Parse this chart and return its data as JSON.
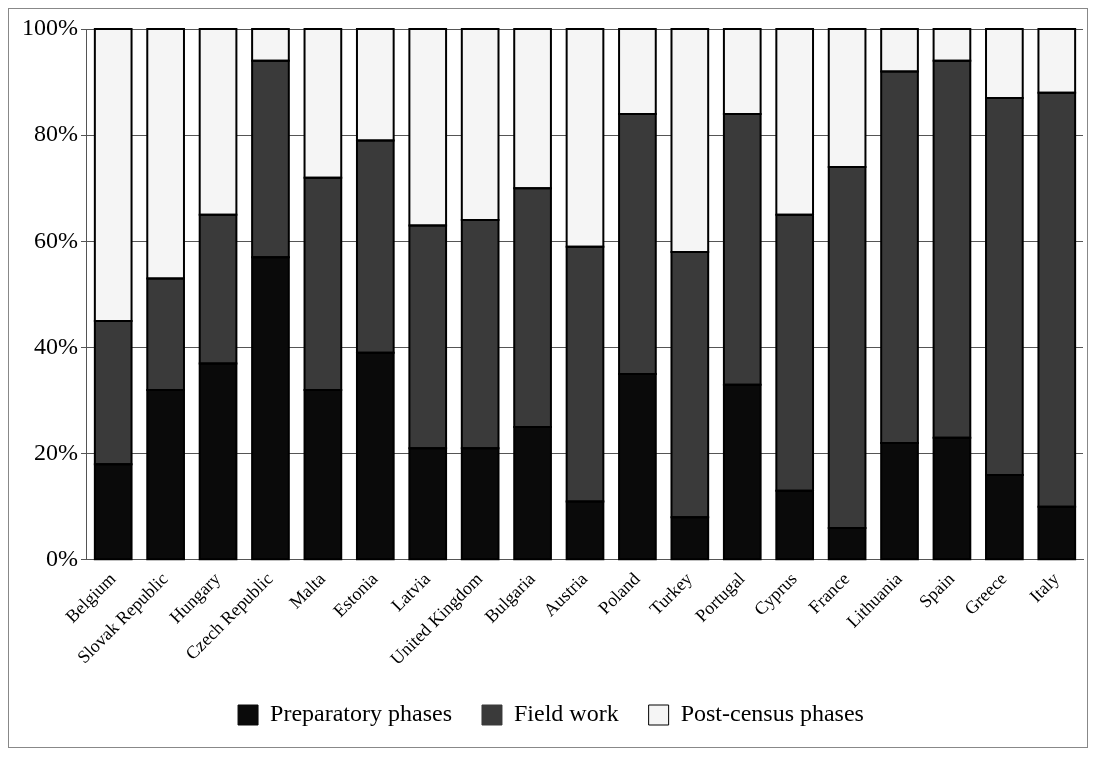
{
  "chart_data": {
    "type": "bar",
    "stacked": true,
    "categories": [
      "Belgium",
      "Slovak Republic",
      "Hungary",
      "Czech Republic",
      "Malta",
      "Estonia",
      "Latvia",
      "United Kingdom",
      "Bulgaria",
      "Austria",
      "Poland",
      "Turkey",
      "Portugal",
      "Cyprus",
      "France",
      "Lithuania",
      "Spain",
      "Greece",
      "Italy"
    ],
    "series": [
      {
        "name": "Preparatory phases",
        "color": "#0a0a0a",
        "values": [
          18,
          32,
          37,
          57,
          32,
          39,
          21,
          21,
          25,
          11,
          35,
          8,
          33,
          13,
          6,
          22,
          23,
          16,
          10
        ]
      },
      {
        "name": "Field work",
        "color": "#3a3a3a",
        "values": [
          27,
          21,
          28,
          37,
          40,
          40,
          42,
          43,
          45,
          48,
          49,
          50,
          51,
          52,
          68,
          70,
          71,
          71,
          78
        ]
      },
      {
        "name": "Post-census phases",
        "color": "#f5f5f5",
        "values": [
          55,
          47,
          35,
          6,
          28,
          21,
          37,
          36,
          30,
          41,
          16,
          42,
          16,
          35,
          26,
          8,
          6,
          13,
          12
        ]
      }
    ],
    "ylim": [
      0,
      100
    ],
    "yticks": [
      {
        "value": 0,
        "label": "0%"
      },
      {
        "value": 20,
        "label": "20%"
      },
      {
        "value": 40,
        "label": "40%"
      },
      {
        "value": 60,
        "label": "60%"
      },
      {
        "value": 80,
        "label": "80%"
      },
      {
        "value": 100,
        "label": "100%"
      }
    ],
    "grid": "y",
    "legend": "bottom"
  }
}
